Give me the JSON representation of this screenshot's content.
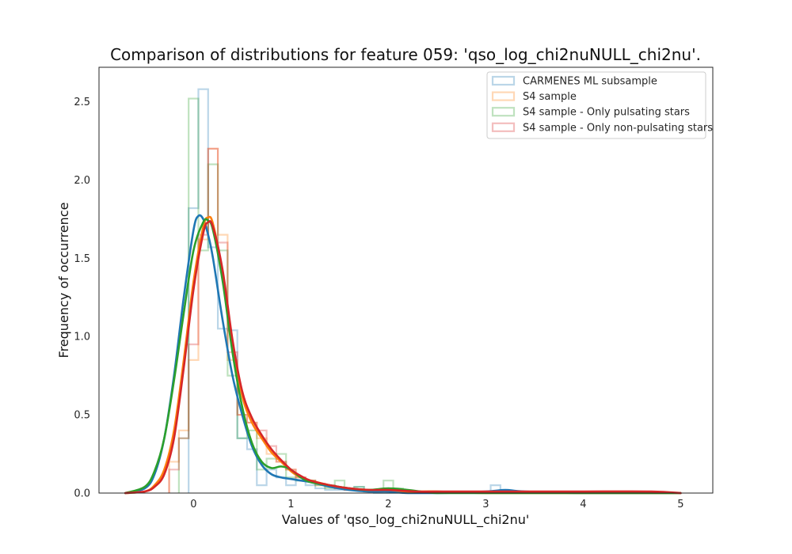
{
  "chart_data": {
    "type": "histogram+kde",
    "title": "Comparison of distributions for feature 059: 'qso_log_chi2nuNULL_chi2nu'.",
    "xlabel": "Values of 'qso_log_chi2nuNULL_chi2nu'",
    "ylabel": "Frequency of occurrence",
    "xlim": [
      -0.97,
      5.33
    ],
    "ylim": [
      0,
      2.72
    ],
    "xticks": [
      "0",
      "1",
      "2",
      "3",
      "4",
      "5"
    ],
    "xtick_values": [
      0,
      1,
      2,
      3,
      4,
      5
    ],
    "yticks": [
      "0.0",
      "0.5",
      "1.0",
      "1.5",
      "2.0",
      "2.5"
    ],
    "ytick_values": [
      0,
      0.5,
      1.0,
      1.5,
      2.0,
      2.5
    ],
    "grid": false,
    "legend_position": "upper right",
    "series": [
      {
        "name": "CARMENES ML subsample",
        "color": "#1f77b4",
        "hist_edges": [
          -0.05,
          0.05,
          0.15,
          0.25,
          0.35,
          0.45,
          0.55,
          0.65,
          0.75,
          0.85,
          0.95,
          1.05,
          1.15,
          1.25,
          1.35,
          1.45,
          1.55,
          1.65,
          1.75,
          1.85,
          1.95,
          2.05,
          2.15,
          2.25,
          2.35,
          2.45,
          2.55,
          2.65,
          2.75,
          2.85,
          2.95,
          3.05,
          3.15,
          3.25
        ],
        "hist_values": [
          1.82,
          2.58,
          1.57,
          1.05,
          1.04,
          0.35,
          0.28,
          0.05,
          0.15,
          0.1,
          0.05,
          0.08,
          0.05,
          0.03,
          0.02,
          0.02,
          0.02,
          0.04,
          0.01,
          0,
          0,
          0,
          0,
          0,
          0,
          0,
          0,
          0,
          0,
          0,
          0,
          0.05,
          0.01
        ],
        "kde_x": [
          -0.7,
          -0.5,
          -0.4,
          -0.3,
          -0.2,
          -0.1,
          0,
          0.05,
          0.1,
          0.15,
          0.2,
          0.3,
          0.4,
          0.5,
          0.6,
          0.7,
          0.8,
          0.9,
          1.0,
          1.1,
          1.2,
          1.4,
          1.6,
          1.8,
          2.0,
          2.2,
          2.5,
          3.0,
          3.2,
          3.4,
          4.0,
          5.0
        ],
        "kde_y": [
          0,
          0.03,
          0.12,
          0.35,
          0.75,
          1.25,
          1.68,
          1.77,
          1.75,
          1.65,
          1.5,
          1.1,
          0.75,
          0.5,
          0.3,
          0.18,
          0.12,
          0.1,
          0.09,
          0.08,
          0.07,
          0.04,
          0.02,
          0.01,
          0.01,
          0,
          0,
          0.01,
          0.02,
          0.01,
          0,
          0
        ]
      },
      {
        "name": "S4 sample",
        "color": "#ff7f0e",
        "hist_edges": [
          -0.25,
          -0.15,
          -0.05,
          0.05,
          0.15,
          0.25,
          0.35,
          0.45,
          0.55,
          0.65,
          0.75,
          0.85,
          0.95,
          1.05,
          1.15,
          1.25,
          1.35,
          1.45,
          1.55,
          1.65,
          1.75,
          1.85,
          1.95,
          2.05,
          2.15,
          2.25
        ],
        "hist_values": [
          0.2,
          0.4,
          0.85,
          1.62,
          2.2,
          1.65,
          0.85,
          0.5,
          0.45,
          0.35,
          0.25,
          0.2,
          0.15,
          0.1,
          0.08,
          0.05,
          0.04,
          0.03,
          0.02,
          0.02,
          0.01,
          0.01,
          0.01,
          0.01,
          0
        ],
        "kde_x": [
          -0.7,
          -0.5,
          -0.4,
          -0.3,
          -0.2,
          -0.1,
          0,
          0.1,
          0.15,
          0.2,
          0.3,
          0.4,
          0.5,
          0.6,
          0.7,
          0.8,
          0.9,
          1.0,
          1.1,
          1.2,
          1.4,
          1.6,
          1.8,
          2.0,
          2.2,
          2.5,
          3.0,
          4.0,
          5.0
        ],
        "kde_y": [
          0,
          0.01,
          0.05,
          0.15,
          0.4,
          0.85,
          1.35,
          1.7,
          1.76,
          1.72,
          1.4,
          0.95,
          0.62,
          0.45,
          0.35,
          0.26,
          0.2,
          0.14,
          0.1,
          0.08,
          0.05,
          0.03,
          0.02,
          0.02,
          0.01,
          0.01,
          0,
          0,
          0
        ]
      },
      {
        "name": "S4 sample - Only pulsating stars",
        "color": "#2ca02c",
        "hist_edges": [
          -0.15,
          -0.05,
          0.05,
          0.15,
          0.25,
          0.35,
          0.45,
          0.55,
          0.65,
          0.75,
          0.85,
          0.95,
          1.05,
          1.15,
          1.25,
          1.35,
          1.45,
          1.55,
          1.65,
          1.75,
          1.85,
          1.95,
          2.05,
          2.15
        ],
        "hist_values": [
          0.35,
          2.52,
          1.55,
          2.1,
          1.55,
          0.75,
          0.35,
          0.4,
          0.15,
          0.22,
          0.25,
          0.1,
          0.08,
          0.08,
          0.05,
          0.03,
          0.08,
          0.03,
          0.04,
          0.02,
          0.02,
          0.08,
          0.03
        ],
        "kde_x": [
          -0.7,
          -0.5,
          -0.4,
          -0.3,
          -0.2,
          -0.1,
          0,
          0.1,
          0.15,
          0.2,
          0.3,
          0.4,
          0.5,
          0.6,
          0.7,
          0.8,
          0.9,
          1.0,
          1.1,
          1.2,
          1.4,
          1.6,
          1.8,
          2.0,
          2.2,
          2.5,
          3.0,
          4.0,
          5.0
        ],
        "kde_y": [
          0,
          0.04,
          0.14,
          0.35,
          0.72,
          1.15,
          1.55,
          1.73,
          1.74,
          1.68,
          1.35,
          0.9,
          0.55,
          0.32,
          0.2,
          0.16,
          0.17,
          0.15,
          0.1,
          0.07,
          0.05,
          0.03,
          0.02,
          0.03,
          0.02,
          0,
          0,
          0,
          0
        ]
      },
      {
        "name": "S4 sample - Only non-pulsating stars",
        "color": "#d62728",
        "hist_edges": [
          -0.25,
          -0.15,
          -0.05,
          0.05,
          0.15,
          0.25,
          0.35,
          0.45,
          0.55,
          0.65,
          0.75,
          0.85,
          0.95,
          1.05,
          1.15,
          1.25,
          1.35,
          1.45,
          1.55,
          1.65,
          1.75,
          1.85,
          1.95,
          2.05
        ],
        "hist_values": [
          0.15,
          0.35,
          0.95,
          1.65,
          2.2,
          1.6,
          0.9,
          0.5,
          0.45,
          0.4,
          0.3,
          0.2,
          0.15,
          0.1,
          0.08,
          0.06,
          0.05,
          0.03,
          0.02,
          0.02,
          0.01,
          0.01,
          0.01
        ],
        "kde_x": [
          -0.7,
          -0.5,
          -0.4,
          -0.3,
          -0.2,
          -0.1,
          0,
          0.1,
          0.15,
          0.2,
          0.3,
          0.4,
          0.5,
          0.6,
          0.7,
          0.8,
          0.9,
          1.0,
          1.1,
          1.2,
          1.4,
          1.6,
          1.8,
          2.0,
          2.3,
          2.6,
          3.0,
          4.0,
          4.7,
          5.0
        ],
        "kde_y": [
          0,
          0.01,
          0.04,
          0.12,
          0.35,
          0.8,
          1.3,
          1.66,
          1.73,
          1.7,
          1.42,
          0.98,
          0.65,
          0.48,
          0.37,
          0.28,
          0.21,
          0.15,
          0.11,
          0.08,
          0.05,
          0.03,
          0.02,
          0.02,
          0.01,
          0.01,
          0.01,
          0.01,
          0.01,
          0
        ]
      }
    ]
  }
}
